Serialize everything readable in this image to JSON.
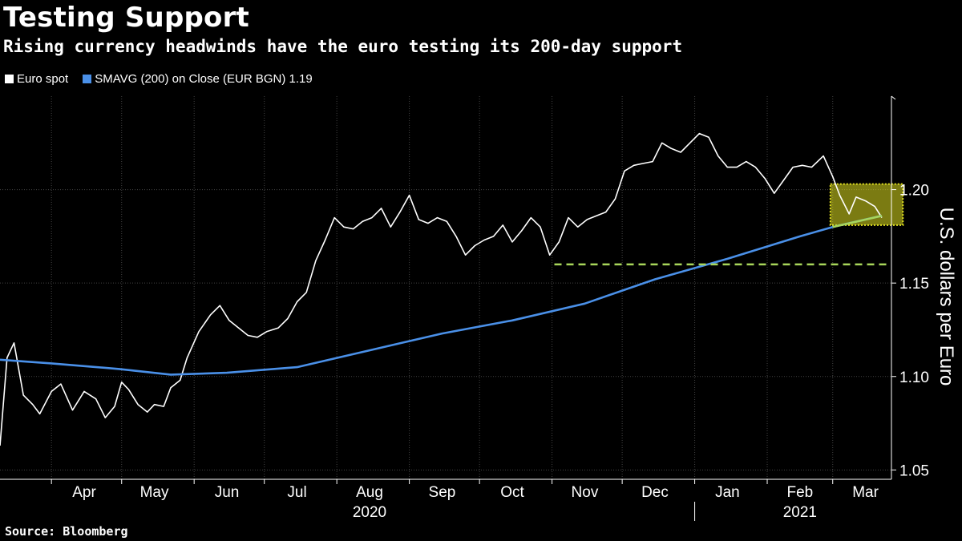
{
  "header": {
    "title": "Testing Support",
    "subtitle": "Rising currency headwinds have the euro testing its 200-day support"
  },
  "legend": {
    "items": [
      {
        "label": "Euro spot",
        "color": "#ffffff"
      },
      {
        "label": "SMAVG (200)  on Close (EUR BGN) 1.19",
        "color": "#4a90e8"
      }
    ]
  },
  "footer": {
    "source": "Source: Bloomberg"
  },
  "chart_data": {
    "type": "line",
    "title": "Testing Support",
    "ylabel": "U.S. dollars per Euro",
    "ylim": [
      1.045,
      1.25
    ],
    "yticks": [
      1.05,
      1.1,
      1.15,
      1.2
    ],
    "ytick_labels": [
      "1.05",
      "1.10",
      "1.15",
      "1.20"
    ],
    "x_start": "2020-03-10",
    "x_end": "2021-03-22",
    "month_labels": [
      {
        "label": "Apr",
        "date": "2020-04-15"
      },
      {
        "label": "May",
        "date": "2020-05-15"
      },
      {
        "label": "Jun",
        "date": "2020-06-15"
      },
      {
        "label": "Jul",
        "date": "2020-07-15"
      },
      {
        "label": "Aug",
        "date": "2020-08-15"
      },
      {
        "label": "Sep",
        "date": "2020-09-15"
      },
      {
        "label": "Oct",
        "date": "2020-10-15"
      },
      {
        "label": "Nov",
        "date": "2020-11-15"
      },
      {
        "label": "Dec",
        "date": "2020-12-15"
      },
      {
        "label": "Jan",
        "date": "2021-01-15"
      },
      {
        "label": "Feb",
        "date": "2021-02-15"
      },
      {
        "label": "Mar",
        "date": "2021-03-15"
      }
    ],
    "year_labels": [
      {
        "label": "2020",
        "date": "2020-08-15"
      },
      {
        "label": "2021",
        "date": "2021-02-15"
      }
    ],
    "series": [
      {
        "name": "Euro spot",
        "color": "#ffffff",
        "points": [
          [
            "2020-03-10",
            1.063
          ],
          [
            "2020-03-13",
            1.11
          ],
          [
            "2020-03-16",
            1.118
          ],
          [
            "2020-03-20",
            1.09
          ],
          [
            "2020-03-24",
            1.085
          ],
          [
            "2020-03-27",
            1.08
          ],
          [
            "2020-04-01",
            1.092
          ],
          [
            "2020-04-05",
            1.096
          ],
          [
            "2020-04-10",
            1.082
          ],
          [
            "2020-04-15",
            1.092
          ],
          [
            "2020-04-20",
            1.088
          ],
          [
            "2020-04-24",
            1.078
          ],
          [
            "2020-04-28",
            1.084
          ],
          [
            "2020-05-01",
            1.097
          ],
          [
            "2020-05-04",
            1.093
          ],
          [
            "2020-05-08",
            1.085
          ],
          [
            "2020-05-12",
            1.081
          ],
          [
            "2020-05-15",
            1.085
          ],
          [
            "2020-05-19",
            1.084
          ],
          [
            "2020-05-22",
            1.094
          ],
          [
            "2020-05-26",
            1.098
          ],
          [
            "2020-05-29",
            1.11
          ],
          [
            "2020-06-03",
            1.124
          ],
          [
            "2020-06-08",
            1.133
          ],
          [
            "2020-06-12",
            1.138
          ],
          [
            "2020-06-16",
            1.13
          ],
          [
            "2020-06-20",
            1.126
          ],
          [
            "2020-06-24",
            1.122
          ],
          [
            "2020-06-28",
            1.121
          ],
          [
            "2020-07-02",
            1.124
          ],
          [
            "2020-07-07",
            1.126
          ],
          [
            "2020-07-11",
            1.131
          ],
          [
            "2020-07-15",
            1.14
          ],
          [
            "2020-07-19",
            1.145
          ],
          [
            "2020-07-23",
            1.162
          ],
          [
            "2020-07-27",
            1.173
          ],
          [
            "2020-07-31",
            1.185
          ],
          [
            "2020-08-04",
            1.18
          ],
          [
            "2020-08-08",
            1.179
          ],
          [
            "2020-08-12",
            1.183
          ],
          [
            "2020-08-16",
            1.185
          ],
          [
            "2020-08-20",
            1.19
          ],
          [
            "2020-08-24",
            1.18
          ],
          [
            "2020-08-28",
            1.188
          ],
          [
            "2020-09-01",
            1.197
          ],
          [
            "2020-09-05",
            1.184
          ],
          [
            "2020-09-09",
            1.182
          ],
          [
            "2020-09-13",
            1.185
          ],
          [
            "2020-09-17",
            1.183
          ],
          [
            "2020-09-21",
            1.175
          ],
          [
            "2020-09-25",
            1.165
          ],
          [
            "2020-09-29",
            1.17
          ],
          [
            "2020-10-03",
            1.173
          ],
          [
            "2020-10-07",
            1.175
          ],
          [
            "2020-10-11",
            1.181
          ],
          [
            "2020-10-15",
            1.172
          ],
          [
            "2020-10-19",
            1.178
          ],
          [
            "2020-10-23",
            1.185
          ],
          [
            "2020-10-27",
            1.18
          ],
          [
            "2020-10-31",
            1.165
          ],
          [
            "2020-11-04",
            1.172
          ],
          [
            "2020-11-08",
            1.185
          ],
          [
            "2020-11-12",
            1.18
          ],
          [
            "2020-11-16",
            1.184
          ],
          [
            "2020-11-20",
            1.186
          ],
          [
            "2020-11-24",
            1.188
          ],
          [
            "2020-11-28",
            1.195
          ],
          [
            "2020-12-02",
            1.21
          ],
          [
            "2020-12-06",
            1.213
          ],
          [
            "2020-12-10",
            1.214
          ],
          [
            "2020-12-14",
            1.215
          ],
          [
            "2020-12-18",
            1.225
          ],
          [
            "2020-12-22",
            1.222
          ],
          [
            "2020-12-26",
            1.22
          ],
          [
            "2020-12-30",
            1.225
          ],
          [
            "2021-01-03",
            1.23
          ],
          [
            "2021-01-07",
            1.228
          ],
          [
            "2021-01-11",
            1.218
          ],
          [
            "2021-01-15",
            1.212
          ],
          [
            "2021-01-19",
            1.212
          ],
          [
            "2021-01-23",
            1.215
          ],
          [
            "2021-01-27",
            1.212
          ],
          [
            "2021-01-31",
            1.206
          ],
          [
            "2021-02-04",
            1.198
          ],
          [
            "2021-02-08",
            1.205
          ],
          [
            "2021-02-12",
            1.212
          ],
          [
            "2021-02-16",
            1.213
          ],
          [
            "2021-02-20",
            1.212
          ],
          [
            "2021-02-25",
            1.218
          ],
          [
            "2021-03-01",
            1.207
          ],
          [
            "2021-03-04",
            1.197
          ],
          [
            "2021-03-08",
            1.187
          ],
          [
            "2021-03-11",
            1.196
          ],
          [
            "2021-03-15",
            1.194
          ],
          [
            "2021-03-19",
            1.191
          ],
          [
            "2021-03-22",
            1.185
          ]
        ]
      },
      {
        "name": "SMAVG (200)  on Close (EUR BGN) 1.19",
        "color": "#4a90e8",
        "points": [
          [
            "2020-03-10",
            1.109
          ],
          [
            "2020-04-01",
            1.107
          ],
          [
            "2020-04-30",
            1.104
          ],
          [
            "2020-05-22",
            1.101
          ],
          [
            "2020-06-15",
            1.102
          ],
          [
            "2020-07-15",
            1.105
          ],
          [
            "2020-08-15",
            1.114
          ],
          [
            "2020-09-15",
            1.123
          ],
          [
            "2020-10-15",
            1.13
          ],
          [
            "2020-11-15",
            1.139
          ],
          [
            "2020-12-15",
            1.152
          ],
          [
            "2021-01-15",
            1.163
          ],
          [
            "2021-02-15",
            1.175
          ],
          [
            "2021-03-01",
            1.18
          ],
          [
            "2021-03-22",
            1.186
          ]
        ]
      }
    ],
    "annotations": [
      {
        "type": "dashed-line",
        "color": "#a8d65a",
        "y": 1.16,
        "x_from": "2020-11-02",
        "x_to": "2021-03-31"
      },
      {
        "type": "highlight-box",
        "color": "#e0e020",
        "x_from": "2021-02-28",
        "x_to": "2021-03-31",
        "y_from": 1.181,
        "y_to": 1.203
      },
      {
        "type": "trend-line",
        "color": "#a8d65a",
        "x_from": "2021-03-01",
        "x_to": "2021-03-22",
        "y_from": 1.18,
        "y_to": 1.186
      }
    ]
  }
}
